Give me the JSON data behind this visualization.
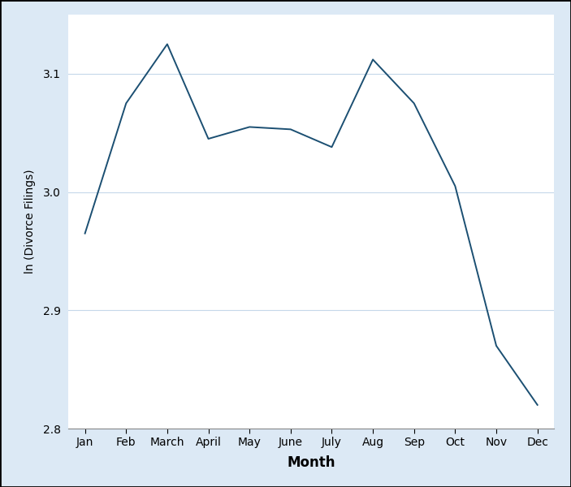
{
  "months": [
    "Jan",
    "Feb",
    "March",
    "April",
    "May",
    "June",
    "July",
    "Aug",
    "Sep",
    "Oct",
    "Nov",
    "Dec"
  ],
  "values": [
    2.965,
    3.075,
    3.125,
    3.045,
    3.055,
    3.053,
    3.038,
    3.112,
    3.075,
    3.005,
    2.87,
    2.82
  ],
  "line_color": "#1b4f72",
  "background_color": "#dce9f5",
  "plot_bg_color": "#ffffff",
  "ylabel": "ln (Divorce Filings)",
  "xlabel": "Month",
  "ylim": [
    2.8,
    3.15
  ],
  "yticks": [
    2.8,
    2.9,
    3.0,
    3.1
  ],
  "grid_color": "#c5d8ea",
  "line_width": 1.4,
  "border_color": "#000000",
  "xlabel_fontsize": 12,
  "ylabel_fontsize": 10,
  "tick_fontsize": 10
}
